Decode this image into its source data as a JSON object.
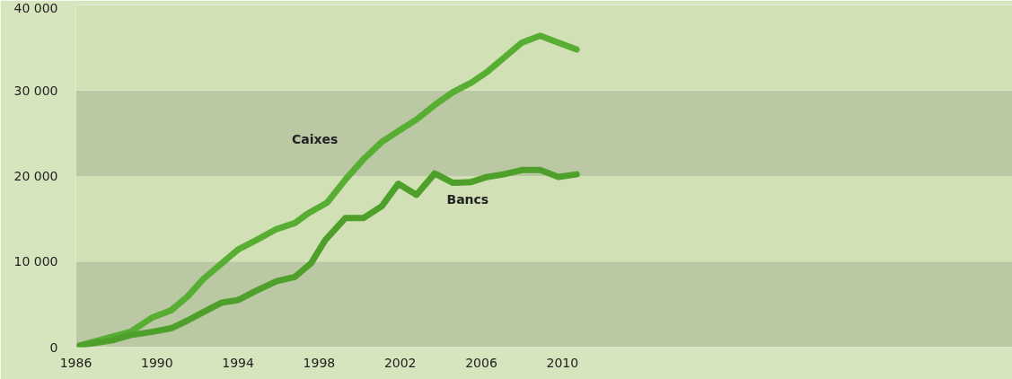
{
  "chart_data": {
    "type": "line",
    "x": [
      1986.2,
      1988.7,
      1989.8,
      1990.7,
      1991.5,
      1992.3,
      1993.1,
      1994.0,
      1994.9,
      1995.9,
      1996.8,
      1997.5,
      1998.4,
      1999.3,
      2000.2,
      2001.1,
      2002.0,
      2002.8,
      2003.7,
      2004.6,
      2005.5,
      2006.3,
      2007.1,
      2008.0,
      2008.9,
      2009.8,
      2010.7
    ],
    "series": [
      {
        "name": "Caixes",
        "color": "#58ad33",
        "values": [
          200,
          1800,
          3500,
          4300,
          5900,
          8000,
          9600,
          11400,
          12500,
          13800,
          14500,
          15700,
          16900,
          19600,
          22000,
          24000,
          25400,
          26600,
          28300,
          29800,
          30900,
          32200,
          33800,
          35600,
          36400,
          35600,
          34800
        ]
      },
      {
        "name": "Bancs",
        "color": "#4fa02b",
        "x": [
          1986.2,
          1987.8,
          1988.7,
          1989.8,
          1990.7,
          1991.5,
          1992.3,
          1993.2,
          1994.0,
          1994.9,
          1995.9,
          1996.8,
          1997.6,
          1998.3,
          1999.3,
          2000.2,
          2001.1,
          2001.9,
          2002.8,
          2003.7,
          2004.6,
          2005.5,
          2006.3,
          2007.1,
          2008.0,
          2008.9,
          2009.8,
          2010.7
        ],
        "values": [
          200,
          800,
          1400,
          1800,
          2200,
          3100,
          4100,
          5200,
          5500,
          6600,
          7700,
          8200,
          9800,
          12500,
          15100,
          15100,
          16500,
          19100,
          17800,
          20300,
          19200,
          19300,
          19900,
          20200,
          20700,
          20700,
          19900,
          20200
        ]
      }
    ],
    "xlim": [
      1986,
      2032.2
    ],
    "xticks": [
      1986,
      1990,
      1994,
      1998,
      2002,
      2006,
      2010
    ],
    "ylim": [
      0,
      40000
    ],
    "yticks": [
      {
        "value": 0,
        "label": "0"
      },
      {
        "value": 10000,
        "label": "10 000"
      },
      {
        "value": 20000,
        "label": "20 000"
      },
      {
        "value": 30000,
        "label": "30 000"
      },
      {
        "value": 40000,
        "label": "40 000"
      }
    ],
    "bands": [
      {
        "axis": "y",
        "from": 0,
        "to": 10000,
        "color": "#bac8a3"
      },
      {
        "axis": "y",
        "from": 10000,
        "to": 20000,
        "color": "#d1e0b5"
      },
      {
        "axis": "y",
        "from": 20000,
        "to": 30000,
        "color": "#bac8a3"
      },
      {
        "axis": "y",
        "from": 30000,
        "to": 40000,
        "color": "#d1e0b5"
      }
    ],
    "marker": "none",
    "line_style": "solid"
  }
}
